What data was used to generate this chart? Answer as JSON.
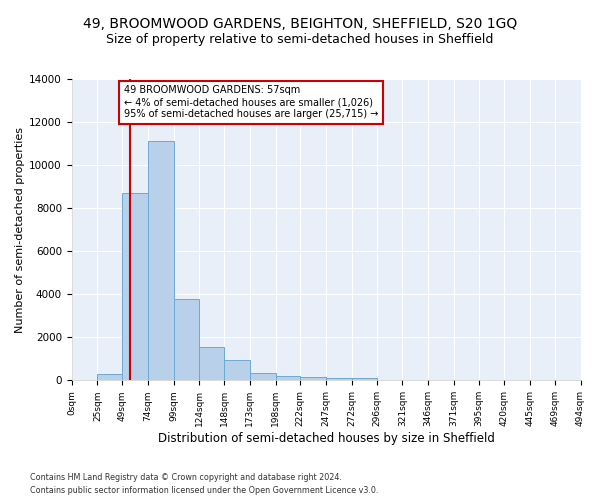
{
  "title1": "49, BROOMWOOD GARDENS, BEIGHTON, SHEFFIELD, S20 1GQ",
  "title2": "Size of property relative to semi-detached houses in Sheffield",
  "xlabel": "Distribution of semi-detached houses by size in Sheffield",
  "ylabel": "Number of semi-detached properties",
  "footer1": "Contains HM Land Registry data © Crown copyright and database right 2024.",
  "footer2": "Contains public sector information licensed under the Open Government Licence v3.0.",
  "annotation_title": "49 BROOMWOOD GARDENS: 57sqm",
  "annotation_line1": "← 4% of semi-detached houses are smaller (1,026)",
  "annotation_line2": "95% of semi-detached houses are larger (25,715) →",
  "property_size": 57,
  "bar_edges": [
    0,
    25,
    49,
    74,
    99,
    124,
    148,
    173,
    198,
    222,
    247,
    272,
    296,
    321,
    346,
    371,
    395,
    420,
    445,
    469,
    494
  ],
  "bar_heights": [
    0,
    310,
    8700,
    11100,
    3800,
    1550,
    950,
    350,
    220,
    150,
    100,
    100,
    0,
    0,
    0,
    0,
    0,
    0,
    0,
    0
  ],
  "bar_color": "#b8d0ea",
  "bar_edgecolor": "#6aaad4",
  "redline_color": "#cc0000",
  "annotation_box_color": "#cc0000",
  "ylim": [
    0,
    14000
  ],
  "yticks": [
    0,
    2000,
    4000,
    6000,
    8000,
    10000,
    12000,
    14000
  ],
  "background_color": "#e8eff9",
  "grid_color": "#ffffff",
  "title1_fontsize": 10,
  "title2_fontsize": 9,
  "xlabel_fontsize": 8.5,
  "ylabel_fontsize": 8
}
